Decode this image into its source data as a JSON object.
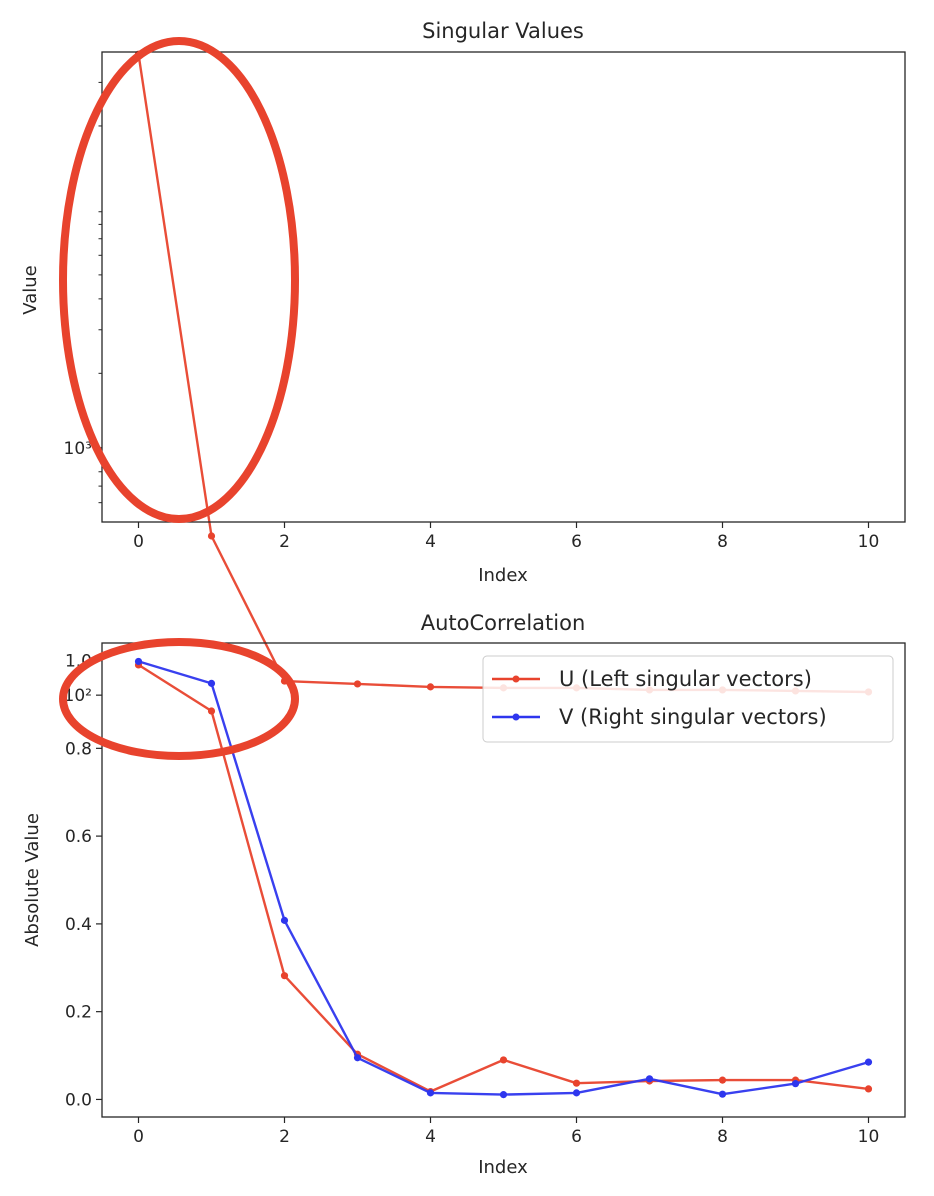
{
  "chart_data": [
    {
      "type": "line",
      "title": "Singular Values",
      "xlabel": "Index",
      "ylabel": "Value",
      "yscale": "log",
      "xlim": [
        -0.5,
        10.5
      ],
      "ylim": [
        2.7,
        4.6
      ],
      "grid": false,
      "x": [
        0,
        1,
        2,
        3,
        4,
        5,
        6,
        7,
        8,
        9,
        10
      ],
      "series": [
        {
          "color": "#e8432d",
          "marker": "dot",
          "values": [
            39000,
            440,
            114,
            111,
            108,
            107,
            107,
            105,
            105,
            104,
            103
          ]
        }
      ],
      "xticks": [
        {
          "value": 0,
          "label": "0"
        },
        {
          "value": 2,
          "label": "2"
        },
        {
          "value": 4,
          "label": "4"
        },
        {
          "value": 6,
          "label": "6"
        },
        {
          "value": 8,
          "label": "8"
        },
        {
          "value": 10,
          "label": "10"
        }
      ],
      "yticks": [
        {
          "value": 1000,
          "label": "10³"
        },
        {
          "value": 100,
          "label": "10²"
        }
      ],
      "annotation": {
        "shape": "ellipse",
        "color": "#e8432d"
      }
    },
    {
      "type": "line",
      "title": "AutoCorrelation",
      "xlabel": "Index",
      "ylabel": "Absolute Value",
      "xlim": [
        -0.5,
        10.5
      ],
      "ylim": [
        -0.04,
        1.04
      ],
      "grid": false,
      "legend_position": "top-right",
      "x": [
        0,
        1,
        2,
        3,
        4,
        5,
        6,
        7,
        8,
        9,
        10
      ],
      "series": [
        {
          "name": "U (Left singular vectors)",
          "color": "#e8432d",
          "marker": "dot",
          "values": [
            0.99,
            0.885,
            0.282,
            0.103,
            0.018,
            0.09,
            0.037,
            0.042,
            0.044,
            0.044,
            0.024
          ]
        },
        {
          "name": "V (Right singular vectors)",
          "color": "#2e36ee",
          "marker": "dot",
          "values": [
            0.998,
            0.948,
            0.408,
            0.095,
            0.015,
            0.011,
            0.015,
            0.047,
            0.012,
            0.036,
            0.085
          ]
        }
      ],
      "xticks": [
        {
          "value": 0,
          "label": "0"
        },
        {
          "value": 2,
          "label": "2"
        },
        {
          "value": 4,
          "label": "4"
        },
        {
          "value": 6,
          "label": "6"
        },
        {
          "value": 8,
          "label": "8"
        },
        {
          "value": 10,
          "label": "10"
        }
      ],
      "yticks": [
        {
          "value": 0.0,
          "label": "0.0"
        },
        {
          "value": 0.2,
          "label": "0.2"
        },
        {
          "value": 0.4,
          "label": "0.4"
        },
        {
          "value": 0.6,
          "label": "0.6"
        },
        {
          "value": 0.8,
          "label": "0.8"
        },
        {
          "value": 1.0,
          "label": "1.0"
        }
      ],
      "annotation": {
        "shape": "ellipse",
        "color": "#e8432d"
      }
    }
  ]
}
